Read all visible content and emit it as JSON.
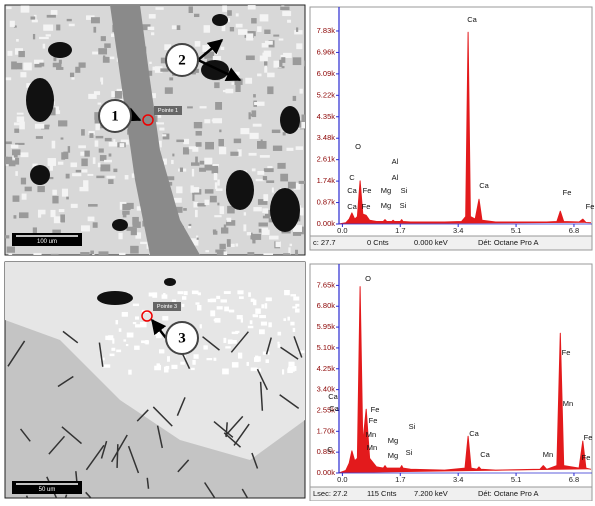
{
  "micrographs": [
    {
      "point_label": "Pointe 1",
      "scale_bar": "100 um",
      "callouts": [
        "1",
        "2"
      ]
    },
    {
      "point_label": "Pointe 3",
      "scale_bar": "50 um",
      "callouts": [
        "3"
      ]
    }
  ],
  "chart_data": [
    {
      "type": "area",
      "color": "#e31a1c",
      "x": [
        -0.1,
        0.1,
        0.2,
        0.28,
        0.36,
        0.44,
        0.52,
        0.6,
        0.7,
        0.8,
        1.0,
        1.2,
        1.25,
        1.3,
        1.45,
        1.49,
        1.53,
        1.7,
        1.74,
        1.78,
        2.0,
        3.0,
        3.5,
        3.62,
        3.69,
        3.76,
        3.9,
        4.01,
        4.1,
        4.5,
        6.0,
        6.3,
        6.4,
        6.5,
        6.95,
        7.06,
        7.15,
        7.3
      ],
      "values": [
        0,
        50,
        200,
        450,
        200,
        300,
        1750,
        400,
        350,
        150,
        100,
        100,
        180,
        100,
        100,
        150,
        100,
        100,
        180,
        100,
        80,
        80,
        100,
        300,
        7780,
        300,
        200,
        1000,
        150,
        80,
        80,
        100,
        520,
        100,
        80,
        200,
        60,
        50
      ],
      "xlim": [
        -0.1,
        7.33
      ],
      "ylim": [
        0,
        8600
      ],
      "xticks": [
        {
          "value": 0,
          "label": "0.0"
        },
        1.7,
        3.4,
        5.1,
        6.8
      ],
      "yticks": [
        {
          "value": 0,
          "label": "0.00k"
        },
        {
          "value": 870,
          "label": "0.87k"
        },
        {
          "value": 1740,
          "label": "1.74k"
        },
        {
          "value": 2610,
          "label": "2.61k"
        },
        {
          "value": 3480,
          "label": "3.48k"
        },
        {
          "value": 4350,
          "label": "4.35k"
        },
        {
          "value": 5220,
          "label": "5.22k"
        },
        {
          "value": 6090,
          "label": "6.09k"
        },
        {
          "value": 6960,
          "label": "6.96k"
        },
        {
          "value": 7830,
          "label": "7.83k"
        }
      ],
      "annotations": [
        "Ca",
        "O",
        "Al",
        "C",
        "Al",
        "Ca",
        "Fe",
        "Mg",
        "Si",
        "Ca",
        "Fe",
        "Ca",
        "Fe",
        "Mg",
        "Si",
        "Fe"
      ],
      "status": [
        "c: 27.7",
        "0 Cnts",
        "0.000 keV",
        "Dét: Octane Pro A"
      ]
    },
    {
      "type": "area",
      "color": "#e31a1c",
      "x": [
        -0.1,
        0.1,
        0.2,
        0.28,
        0.36,
        0.44,
        0.52,
        0.6,
        0.64,
        0.7,
        0.8,
        1.0,
        1.2,
        1.25,
        1.3,
        1.7,
        1.74,
        1.78,
        2.0,
        3.0,
        3.6,
        3.69,
        3.78,
        3.95,
        4.01,
        4.07,
        4.5,
        5.8,
        5.9,
        6.0,
        6.3,
        6.4,
        6.5,
        6.95,
        7.06,
        7.15,
        7.3
      ],
      "values": [
        0,
        100,
        400,
        900,
        500,
        600,
        7600,
        1200,
        1800,
        2600,
        600,
        250,
        200,
        300,
        200,
        200,
        300,
        200,
        150,
        120,
        200,
        1500,
        200,
        150,
        250,
        150,
        120,
        150,
        300,
        150,
        300,
        5700,
        300,
        200,
        1300,
        200,
        150
      ],
      "xlim": [
        -0.1,
        7.33
      ],
      "ylim": [
        0,
        8400
      ],
      "xticks": [
        {
          "value": 0,
          "label": "0.0"
        },
        1.7,
        3.4,
        5.1,
        6.8
      ],
      "yticks": [
        {
          "value": 0,
          "label": "0.00k"
        },
        {
          "value": 850,
          "label": "0.85k"
        },
        {
          "value": 1700,
          "label": "1.70k"
        },
        {
          "value": 2550,
          "label": "2.55k"
        },
        {
          "value": 3400,
          "label": "3.40k"
        },
        {
          "value": 4250,
          "label": "4.25k"
        },
        {
          "value": 5100,
          "label": "5.10k"
        },
        {
          "value": 5950,
          "label": "5.95k"
        },
        {
          "value": 6800,
          "label": "6.80k"
        },
        {
          "value": 7650,
          "label": "7.65k"
        }
      ],
      "annotations": [
        "O",
        "Ca",
        "Ca",
        "Fe",
        "Fe",
        "Mn",
        "Mg",
        "Si",
        "Ca",
        "Fe",
        "Mn",
        "Fe",
        "C",
        "Mn",
        "Mg",
        "Si",
        "Ca",
        "Mn",
        "Fe"
      ],
      "status": [
        "Lsec: 27.2",
        "115 Cnts",
        "7.200 keV",
        "Dét: Octane Pro A"
      ]
    }
  ]
}
